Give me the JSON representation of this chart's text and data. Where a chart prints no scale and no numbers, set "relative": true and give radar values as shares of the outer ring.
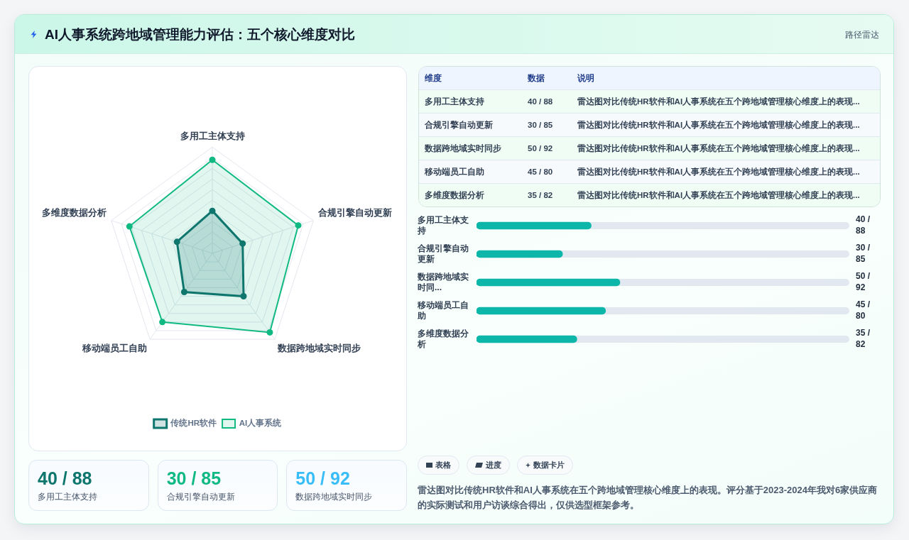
{
  "chart_data": [
    {
      "type": "other",
      "title": "AI人事系统跨地域管理能力评估：五个核心维度对比",
      "subtitle": "路径雷达"
    },
    {
      "type": "radar",
      "relative": true,
      "categories": [
        "多用工主体支持",
        "合规引擎自动更新",
        "数据跨地域实时同步",
        "移动端员工自助",
        "多维度数据分析"
      ],
      "series": [
        {
          "name": "传统HR软件",
          "color": "#0f766e",
          "values": [
            0.4,
            0.3,
            0.5,
            0.45,
            0.35
          ]
        },
        {
          "name": "AI人事系统",
          "color": "#10b981",
          "values": [
            0.88,
            0.85,
            0.92,
            0.8,
            0.82
          ]
        }
      ],
      "grid": true,
      "legend": "bottom",
      "marker": "circle"
    },
    {
      "type": "other",
      "categories": [
        "多用工主体支持",
        "合规引擎自动更新",
        "数据跨地域实时同步",
        "移动端员工自助",
        "多维度数据分析"
      ],
      "value_labels": [
        "40 / 88",
        "30 / 85",
        "50 / 92",
        "45 / 80",
        "35 / 82"
      ],
      "annotations": [
        "维度",
        "数据",
        "说明",
        "雷达图对比传统HR软件和AI人事系统在五个跨地域管理核心维度上的表现...",
        "雷达图对比传统HR软件和AI人事系统在五个跨地域管理核心维度上的表现...",
        "雷达图对比传统HR软件和AI人事系统在五个跨地域管理核心维度上的表现...",
        "雷达图对比传统HR软件和AI人事系统在五个跨地域管理核心维度上的表现...",
        "雷达图对比传统HR软件和AI人事系统在五个跨地域管理核心维度上的表现..."
      ]
    },
    {
      "type": "bar",
      "orientation": "horizontal",
      "categories": [
        "多用工主体支持",
        "合规引擎自动更新",
        "数据跨地域实时同...",
        "移动端员工自助",
        "多维度数据分析"
      ],
      "values": [
        40,
        30,
        50,
        45,
        35
      ],
      "value_labels": [
        "40 / 88",
        "30 / 85",
        "50 / 92",
        "45 / 80",
        "35 / 82"
      ],
      "color": "#0cb6a8",
      "xlim": [
        0,
        130
      ],
      "tick_labels": "y"
    },
    {
      "type": "other",
      "categories": [
        "多用工主体支持",
        "合规引擎自动更新",
        "数据跨地域实时同步"
      ],
      "value_labels": [
        "40 / 88",
        "30 / 85",
        "50 / 92"
      ],
      "colors": [
        "#0f766e",
        "#10b981",
        "#38bdf8"
      ]
    },
    {
      "type": "other",
      "annotations": [
        "表格",
        "进度",
        "数据卡片",
        "雷达图对比传统HR软件和AI人事系统在五个跨地域管理核心维度上的表现。评分基于2023-2024年我对6家供应商的实际测试和用户访谈综合得出，仅供选型框架参考。"
      ]
    }
  ]
}
